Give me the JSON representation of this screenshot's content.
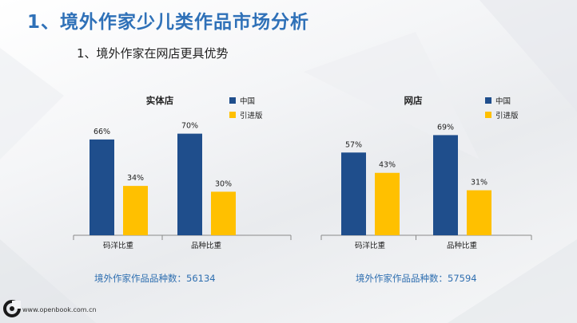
{
  "slide": {
    "title": "1、境外作家少儿类作品市场分析",
    "subtitle": "1、境外作家在网店更具优势",
    "footer_url": "www.openbook.com.cn"
  },
  "colors": {
    "china": "#1f4e8c",
    "imported": "#ffc000",
    "title": "#2f71b8",
    "summary": "#2f6fb0"
  },
  "chart_data": [
    {
      "type": "bar",
      "title": "实体店",
      "categories": [
        "码洋比重",
        "品种比重"
      ],
      "series": [
        {
          "name": "中国",
          "values": [
            66,
            70
          ],
          "labels": [
            "66%",
            "70%"
          ]
        },
        {
          "name": "引进版",
          "values": [
            34,
            30
          ],
          "labels": [
            "34%",
            "30%"
          ]
        }
      ],
      "ylim": [
        0,
        100
      ],
      "legend": "top-right",
      "grid": false,
      "summary": "境外作家作品品种数：56134"
    },
    {
      "type": "bar",
      "title": "网店",
      "categories": [
        "码洋比重",
        "品种比重"
      ],
      "series": [
        {
          "name": "中国",
          "values": [
            57,
            69
          ],
          "labels": [
            "57%",
            "69%"
          ]
        },
        {
          "name": "引进版",
          "values": [
            43,
            31
          ],
          "labels": [
            "43%",
            "31%"
          ]
        }
      ],
      "ylim": [
        0,
        100
      ],
      "legend": "top-right",
      "grid": false,
      "summary": "境外作家作品品种数：57594"
    }
  ]
}
